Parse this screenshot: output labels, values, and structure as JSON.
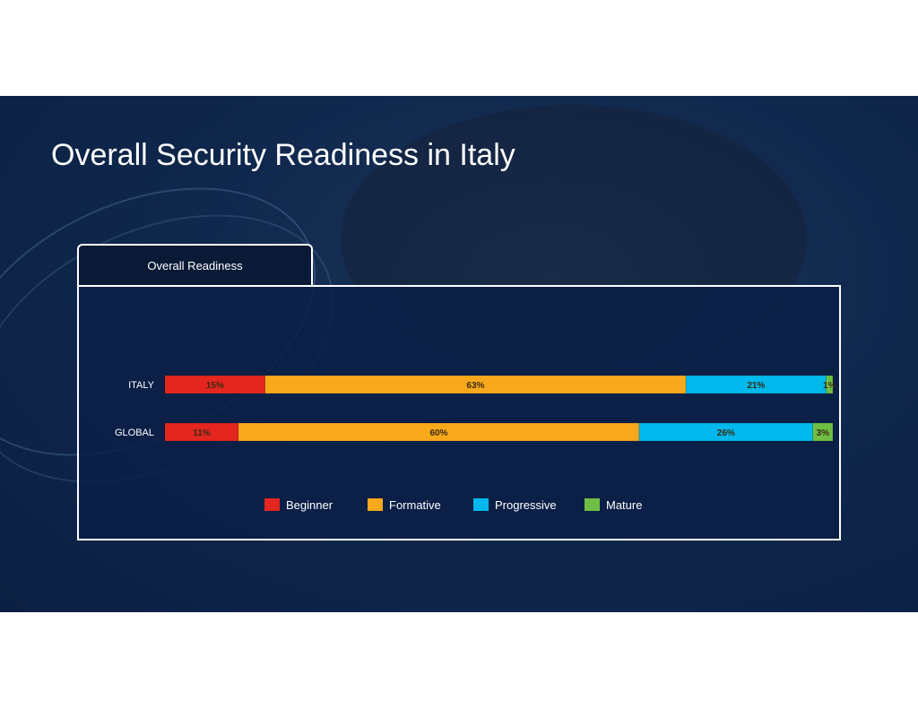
{
  "slide": {
    "title": "Overall Security Readiness in Italy",
    "tab_label": "Overall Readiness"
  },
  "chart_data": {
    "type": "bar",
    "orientation": "horizontal-stacked",
    "title": "Overall Readiness",
    "categories": [
      "ITALY",
      "GLOBAL"
    ],
    "series": [
      {
        "name": "Beginner",
        "color": "#e3261f",
        "values": [
          15,
          11
        ]
      },
      {
        "name": "Formative",
        "color": "#f8a91b",
        "values": [
          63,
          60
        ]
      },
      {
        "name": "Progressive",
        "color": "#00b8eb",
        "values": [
          21,
          26
        ]
      },
      {
        "name": "Mature",
        "color": "#6fbe44",
        "values": [
          1,
          3
        ]
      }
    ],
    "data_labels": [
      [
        "15%",
        "63%",
        "21%",
        "1%"
      ],
      [
        "11%",
        "60%",
        "26%",
        "3%"
      ]
    ],
    "xlim": [
      0,
      100
    ],
    "legend": "bottom",
    "grid": false
  }
}
